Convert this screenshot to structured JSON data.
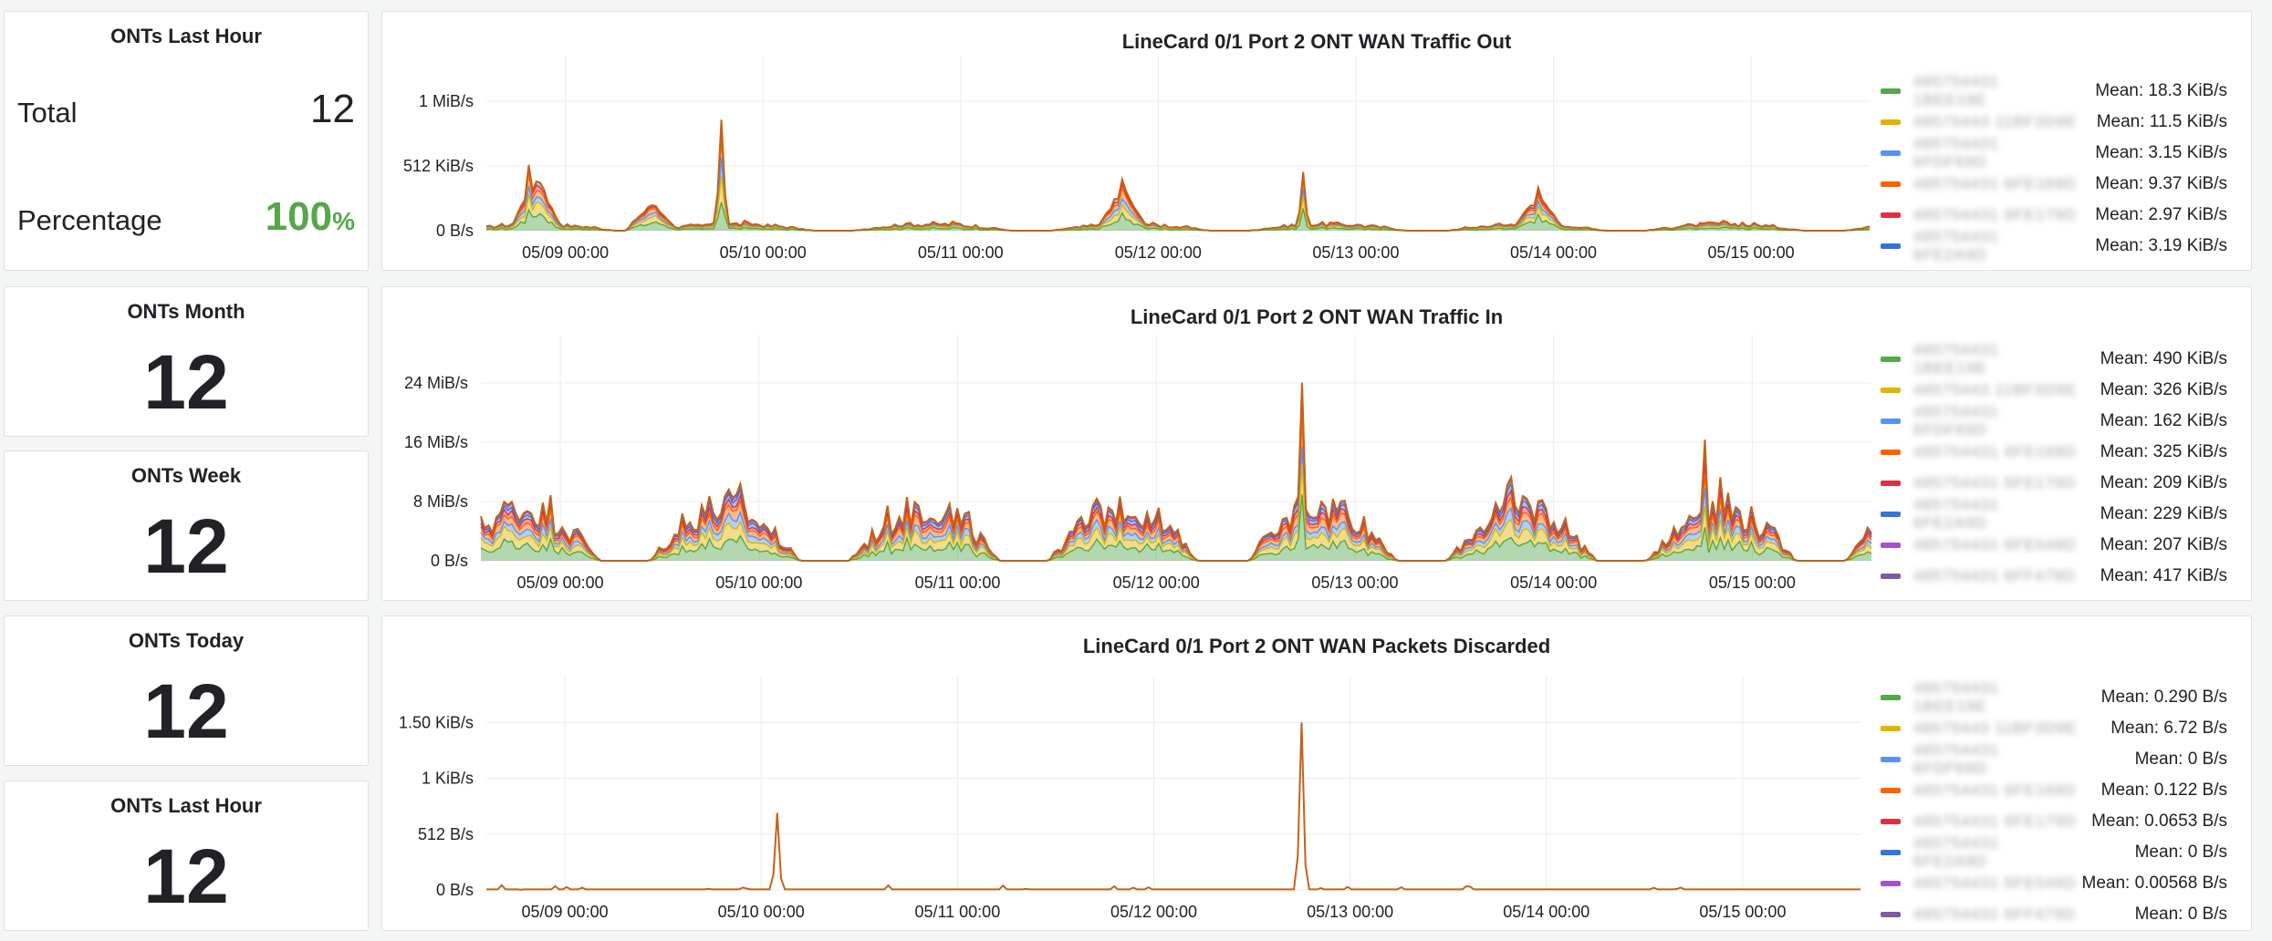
{
  "stat_panels": [
    {
      "title": "ONTs Last Hour",
      "total_label": "Total",
      "total_value": "12",
      "pct_label": "Percentage",
      "pct_value": "100",
      "pct_unit": "%"
    },
    {
      "title": "ONTs Month",
      "value": "12"
    },
    {
      "title": "ONTs Week",
      "value": "12"
    },
    {
      "title": "ONTs Today",
      "value": "12"
    },
    {
      "title": "ONTs Last Hour",
      "value": "12"
    }
  ],
  "colors": {
    "series": [
      "#56a64b",
      "#e0b400",
      "#5794f2",
      "#fa6400",
      "#e02f44",
      "#3274d9",
      "#a352cc",
      "#7c5ba3"
    ],
    "grid": "#ececec",
    "axis_text": "#202226",
    "stat_green": "#56a64b"
  },
  "graphs": [
    {
      "title": "LineCard 0/1 Port 2 ONT WAN Traffic Out",
      "y_ticks": [
        "0 B/s",
        "512 KiB/s",
        "1 MiB/s"
      ],
      "x_ticks": [
        "05/09 00:00",
        "05/10 00:00",
        "05/11 00:00",
        "05/12 00:00",
        "05/13 00:00",
        "05/14 00:00",
        "05/15 00:00"
      ],
      "legend": [
        {
          "name": "485754431 1BEE19E",
          "mean": "Mean: 18.3 KiB/s"
        },
        {
          "name": "48575443 11BF3D9E",
          "mean": "Mean: 11.5 KiB/s"
        },
        {
          "name": "485754431 6FDF69D",
          "mean": "Mean: 3.15 KiB/s"
        },
        {
          "name": "485754431 6FE169D",
          "mean": "Mean: 9.37 KiB/s"
        },
        {
          "name": "485754431 6FE179D",
          "mean": "Mean: 2.97 KiB/s"
        },
        {
          "name": "485754431 6FE2A9D",
          "mean": "Mean: 3.19 KiB/s"
        }
      ]
    },
    {
      "title": "LineCard 0/1 Port 2 ONT WAN Traffic In",
      "y_ticks": [
        "0 B/s",
        "8 MiB/s",
        "16 MiB/s",
        "24 MiB/s"
      ],
      "x_ticks": [
        "05/09 00:00",
        "05/10 00:00",
        "05/11 00:00",
        "05/12 00:00",
        "05/13 00:00",
        "05/14 00:00",
        "05/15 00:00"
      ],
      "legend": [
        {
          "name": "485754431 1BEE19E",
          "mean": "Mean: 490 KiB/s"
        },
        {
          "name": "48575443 11BF3D9E",
          "mean": "Mean: 326 KiB/s"
        },
        {
          "name": "485754431 6FDF69D",
          "mean": "Mean: 162 KiB/s"
        },
        {
          "name": "485754431 6FE169D",
          "mean": "Mean: 325 KiB/s"
        },
        {
          "name": "485754431 6FE179D",
          "mean": "Mean: 209 KiB/s"
        },
        {
          "name": "485754431 6FE2A9D",
          "mean": "Mean: 229 KiB/s"
        },
        {
          "name": "485754431 6FE549D",
          "mean": "Mean: 207 KiB/s"
        },
        {
          "name": "485754431 6FF479D",
          "mean": "Mean: 417 KiB/s"
        }
      ]
    },
    {
      "title": "LineCard 0/1 Port 2 ONT WAN Packets Discarded",
      "y_ticks": [
        "0 B/s",
        "512 B/s",
        "1 KiB/s",
        "1.50 KiB/s"
      ],
      "x_ticks": [
        "05/09 00:00",
        "05/10 00:00",
        "05/11 00:00",
        "05/12 00:00",
        "05/13 00:00",
        "05/14 00:00",
        "05/15 00:00"
      ],
      "legend": [
        {
          "name": "485754431 1BEE19E",
          "mean": "Mean: 0.290 B/s"
        },
        {
          "name": "48575443 11BF3D9E",
          "mean": "Mean: 6.72 B/s"
        },
        {
          "name": "485754431 6FDF69D",
          "mean": "Mean: 0 B/s"
        },
        {
          "name": "485754431 6FE169D",
          "mean": "Mean: 0.122 B/s"
        },
        {
          "name": "485754431 6FE179D",
          "mean": "Mean: 0.0653 B/s"
        },
        {
          "name": "485754431 6FE2A9D",
          "mean": "Mean: 0 B/s"
        },
        {
          "name": "485754431 6FE549D",
          "mean": "Mean: 0.00568 B/s"
        },
        {
          "name": "485754431 6FF479D",
          "mean": "Mean: 0 B/s"
        }
      ]
    }
  ]
}
